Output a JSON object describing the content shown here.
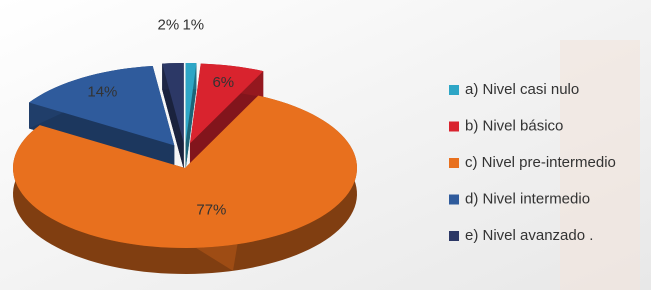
{
  "chart_data": {
    "type": "pie",
    "categories": [
      "a) Nivel casi nulo",
      "b) Nivel básico",
      "c) Nivel pre-intermedio",
      "d) Nivel intermedio",
      "e) Nivel avanzado ."
    ],
    "values": [
      1,
      6,
      77,
      14,
      2
    ],
    "value_labels": [
      "1%",
      "6%",
      "77%",
      "14%",
      "2%"
    ],
    "colors": [
      "#2ea6c6",
      "#d9232e",
      "#e8701e",
      "#2f5b9c",
      "#2c3866"
    ],
    "legend": "right"
  }
}
